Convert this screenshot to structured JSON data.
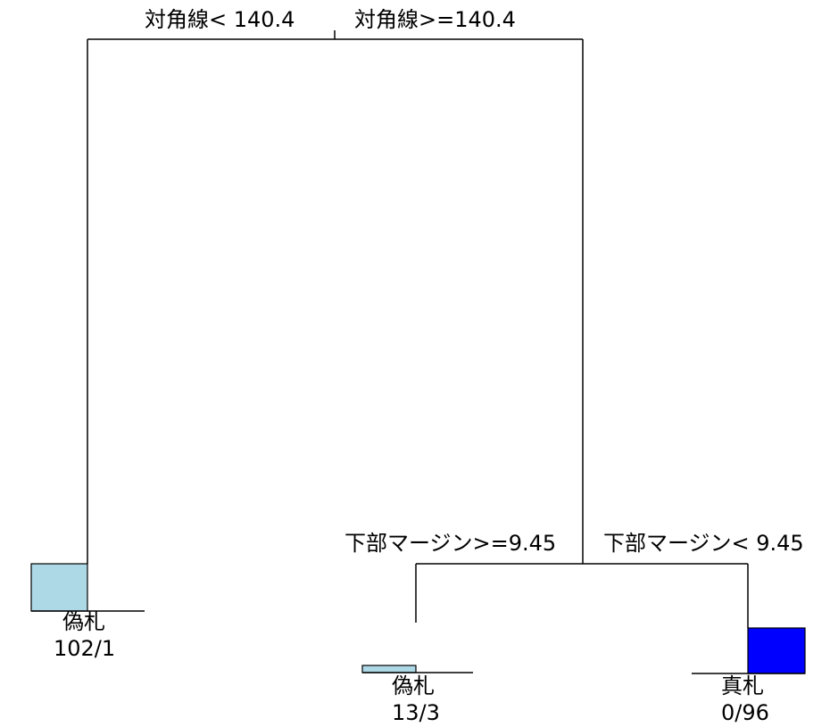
{
  "split_root": {
    "left_label": "対角線< 140.4",
    "right_label": "対角線>=140.4"
  },
  "split_right": {
    "left_label": "下部マージン>=9.45",
    "right_label": "下部マージン< 9.45"
  },
  "leaves": [
    {
      "class_label": "偽札",
      "counts": "102/1",
      "fill_color": "#add8e6"
    },
    {
      "class_label": "偽札",
      "counts": "13/3",
      "fill_color": "#add8e6"
    },
    {
      "class_label": "真札",
      "counts": "0/96",
      "fill_color": "#0000ff"
    }
  ],
  "colors": {
    "line": "#000000",
    "background": "#ffffff"
  }
}
